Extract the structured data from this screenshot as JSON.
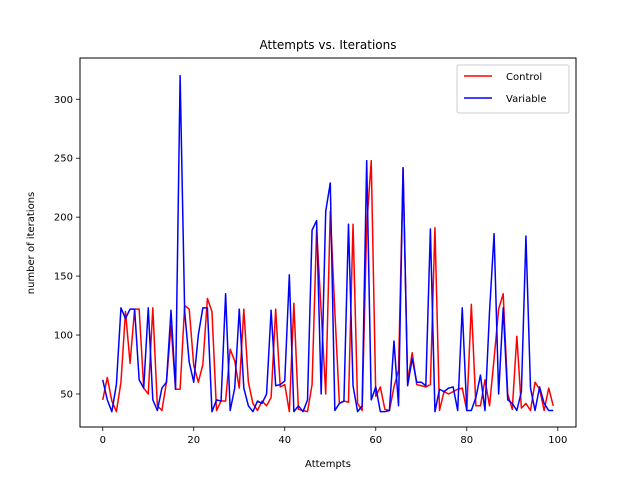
{
  "chart_data": {
    "type": "line",
    "title": "Attempts vs. Iterations",
    "xlabel": "Attempts",
    "ylabel": "number of iterations",
    "xlim": [
      -5,
      104
    ],
    "ylim": [
      22,
      335
    ],
    "xticks": [
      0,
      20,
      40,
      60,
      80,
      100
    ],
    "yticks": [
      50,
      100,
      150,
      200,
      250,
      300
    ],
    "grid": false,
    "legend_position": "top-right",
    "x": [
      0,
      1,
      2,
      3,
      4,
      5,
      6,
      7,
      8,
      9,
      10,
      11,
      12,
      13,
      14,
      15,
      16,
      17,
      18,
      19,
      20,
      21,
      22,
      23,
      24,
      25,
      26,
      27,
      28,
      29,
      30,
      31,
      32,
      33,
      34,
      35,
      36,
      37,
      38,
      39,
      40,
      41,
      42,
      43,
      44,
      45,
      46,
      47,
      48,
      49,
      50,
      51,
      52,
      53,
      54,
      55,
      56,
      57,
      58,
      59,
      60,
      61,
      62,
      63,
      64,
      65,
      66,
      67,
      68,
      69,
      70,
      71,
      72,
      73,
      74,
      75,
      76,
      77,
      78,
      79,
      80,
      81,
      82,
      83,
      84,
      85,
      86,
      87,
      88,
      89,
      90,
      91,
      92,
      93,
      94,
      95,
      96,
      97,
      98,
      99
    ],
    "series": [
      {
        "name": "Control",
        "color": "#ff0000",
        "values": [
          45,
          64,
          44,
          35,
          60,
          120,
          76,
          122,
          122,
          55,
          50,
          123,
          40,
          36,
          60,
          108,
          54,
          54,
          125,
          122,
          74,
          60,
          75,
          131,
          120,
          36,
          44,
          44,
          88,
          78,
          55,
          122,
          60,
          42,
          36,
          44,
          40,
          47,
          122,
          56,
          58,
          35,
          127,
          37,
          36,
          35,
          58,
          190,
          120,
          50,
          205,
          120,
          42,
          44,
          43,
          194,
          42,
          36,
          192,
          248,
          48,
          56,
          37,
          36,
          56,
          70,
          241,
          60,
          85,
          58,
          57,
          56,
          58,
          191,
          36,
          52,
          50,
          52,
          54,
          55,
          36,
          126,
          40,
          40,
          62,
          40,
          80,
          122,
          135,
          50,
          37,
          99,
          38,
          42,
          36,
          60,
          54,
          36,
          55,
          40
        ]
      },
      {
        "name": "Variable",
        "color": "#0000ff",
        "values": [
          62,
          45,
          35,
          58,
          123,
          114,
          122,
          122,
          62,
          55,
          123,
          45,
          36,
          55,
          60,
          121,
          54,
          320,
          120,
          77,
          60,
          100,
          123,
          123,
          35,
          45,
          44,
          135,
          36,
          55,
          122,
          55,
          40,
          35,
          44,
          42,
          50,
          121,
          57,
          58,
          61,
          151,
          35,
          40,
          35,
          45,
          189,
          197,
          50,
          205,
          229,
          36,
          42,
          44,
          194,
          57,
          35,
          40,
          248,
          45,
          56,
          35,
          35,
          36,
          95,
          40,
          242,
          57,
          80,
          60,
          60,
          57,
          190,
          35,
          54,
          52,
          55,
          56,
          36,
          123,
          36,
          36,
          47,
          66,
          36,
          120,
          186,
          50,
          123,
          45,
          42,
          36,
          52,
          184,
          55,
          36,
          56,
          42,
          36,
          36
        ]
      }
    ]
  }
}
